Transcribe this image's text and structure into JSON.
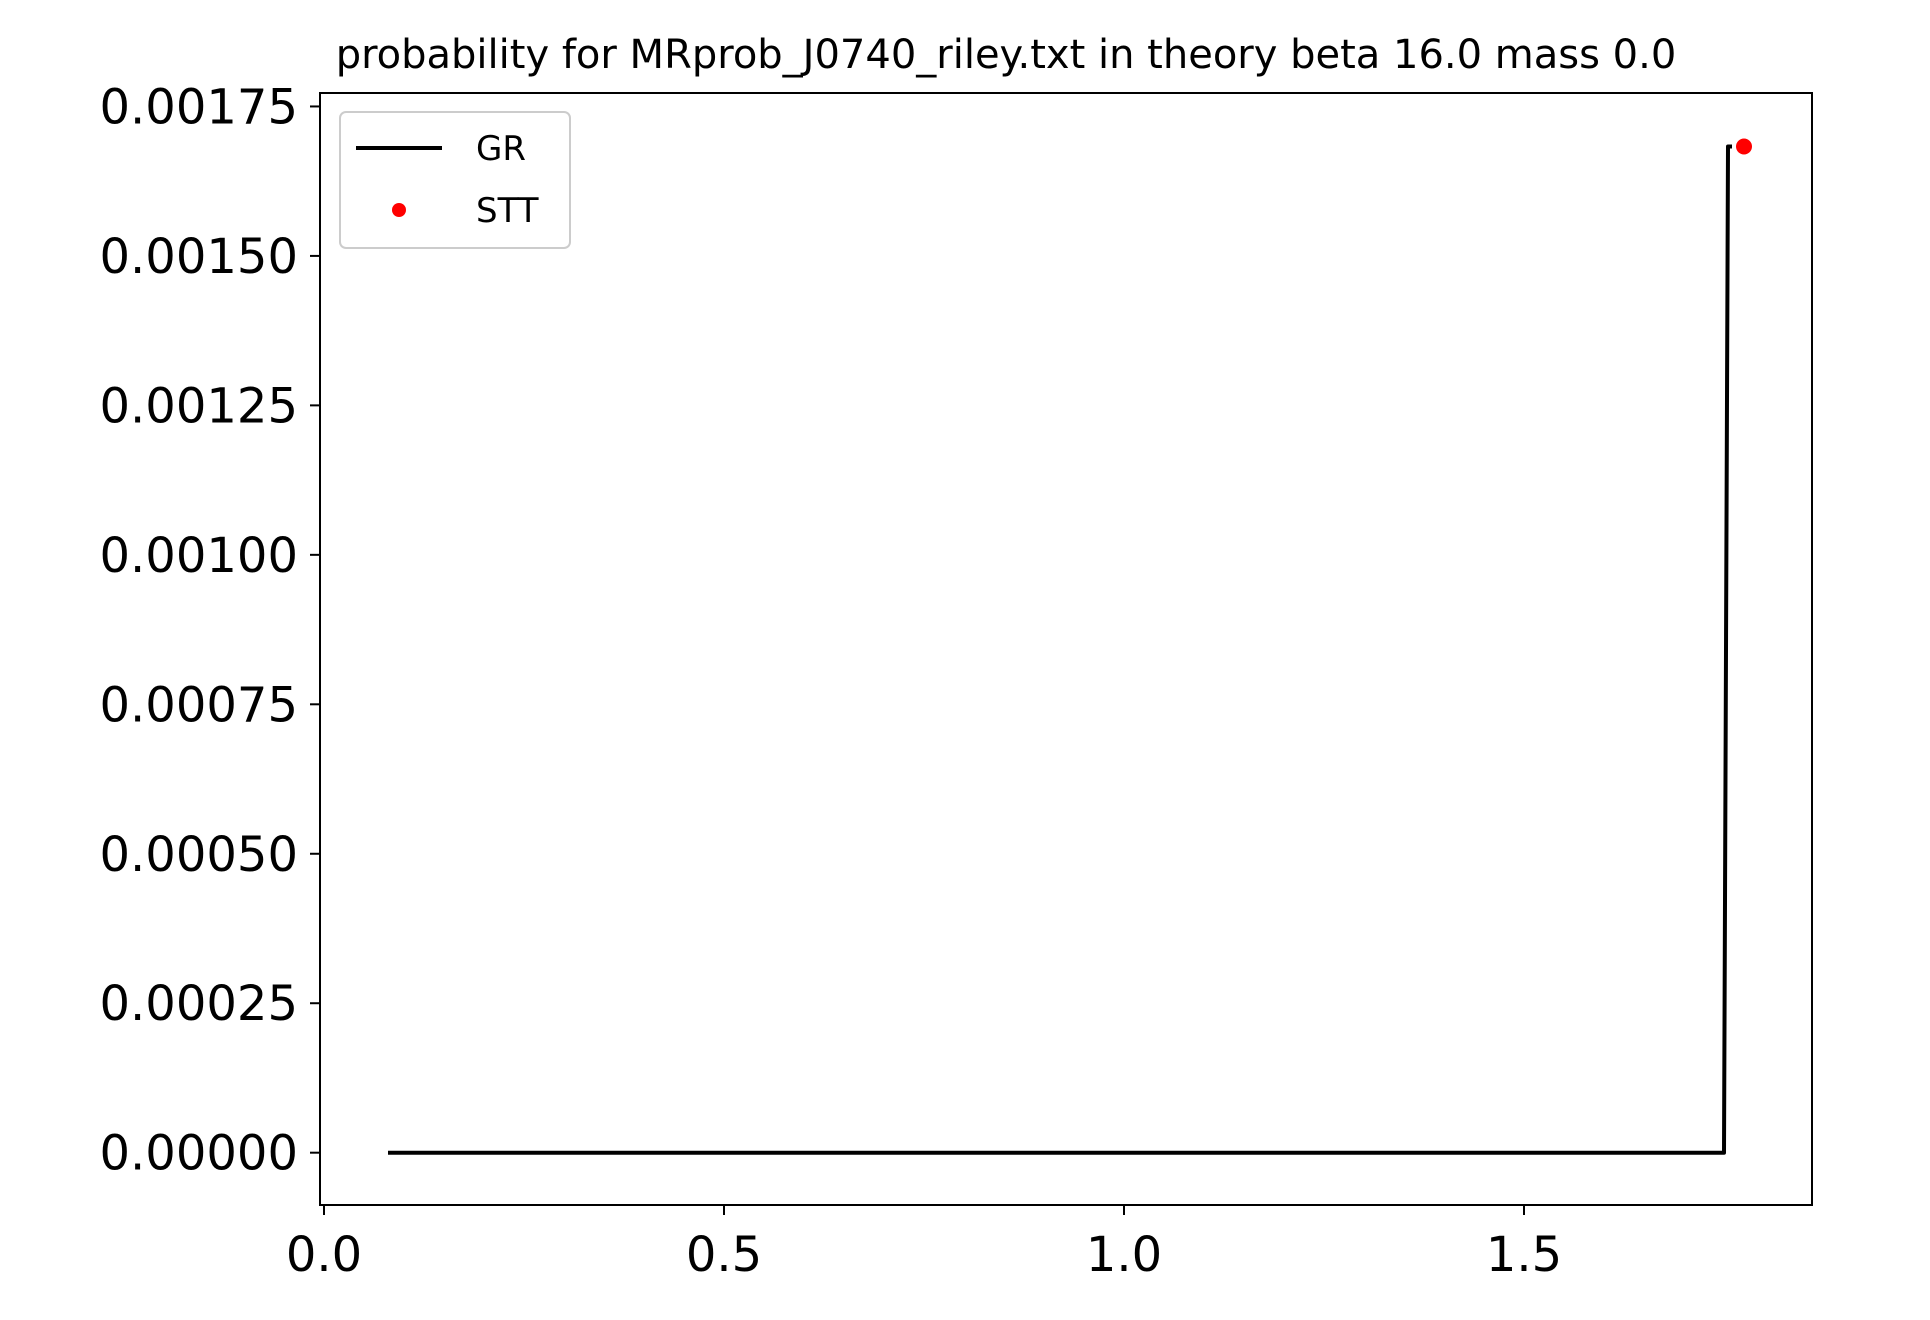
{
  "chart_data": {
    "type": "line",
    "title": "probability for MRprob_J0740_riley.txt in theory beta 16.0 mass 0.0",
    "xlabel": "",
    "ylabel": "",
    "xlim": [
      -0.005,
      1.86
    ],
    "ylim": [
      -8.75e-05,
      0.0017725
    ],
    "x_ticks": [
      0.0,
      0.5,
      1.0,
      1.5
    ],
    "x_tick_labels": [
      "0.0",
      "0.5",
      "1.0",
      "1.5"
    ],
    "y_ticks": [
      0.0,
      0.00025,
      0.0005,
      0.00075,
      0.001,
      0.00125,
      0.0015,
      0.00175
    ],
    "y_tick_labels": [
      "0.00000",
      "0.00025",
      "0.00050",
      "0.00075",
      "0.00100",
      "0.00125",
      "0.00150",
      "0.00175"
    ],
    "grid": false,
    "legend_position": "top-left",
    "series": [
      {
        "name": "GR",
        "style": "line",
        "color": "#000000",
        "x": [
          0.08,
          1.75,
          1.755,
          1.76
        ],
        "y": [
          0.0,
          0.0,
          0.001683,
          0.001683
        ]
      },
      {
        "name": "STT",
        "style": "marker",
        "color": "#ff0000",
        "x": [
          1.775
        ],
        "y": [
          0.001683
        ]
      }
    ]
  }
}
